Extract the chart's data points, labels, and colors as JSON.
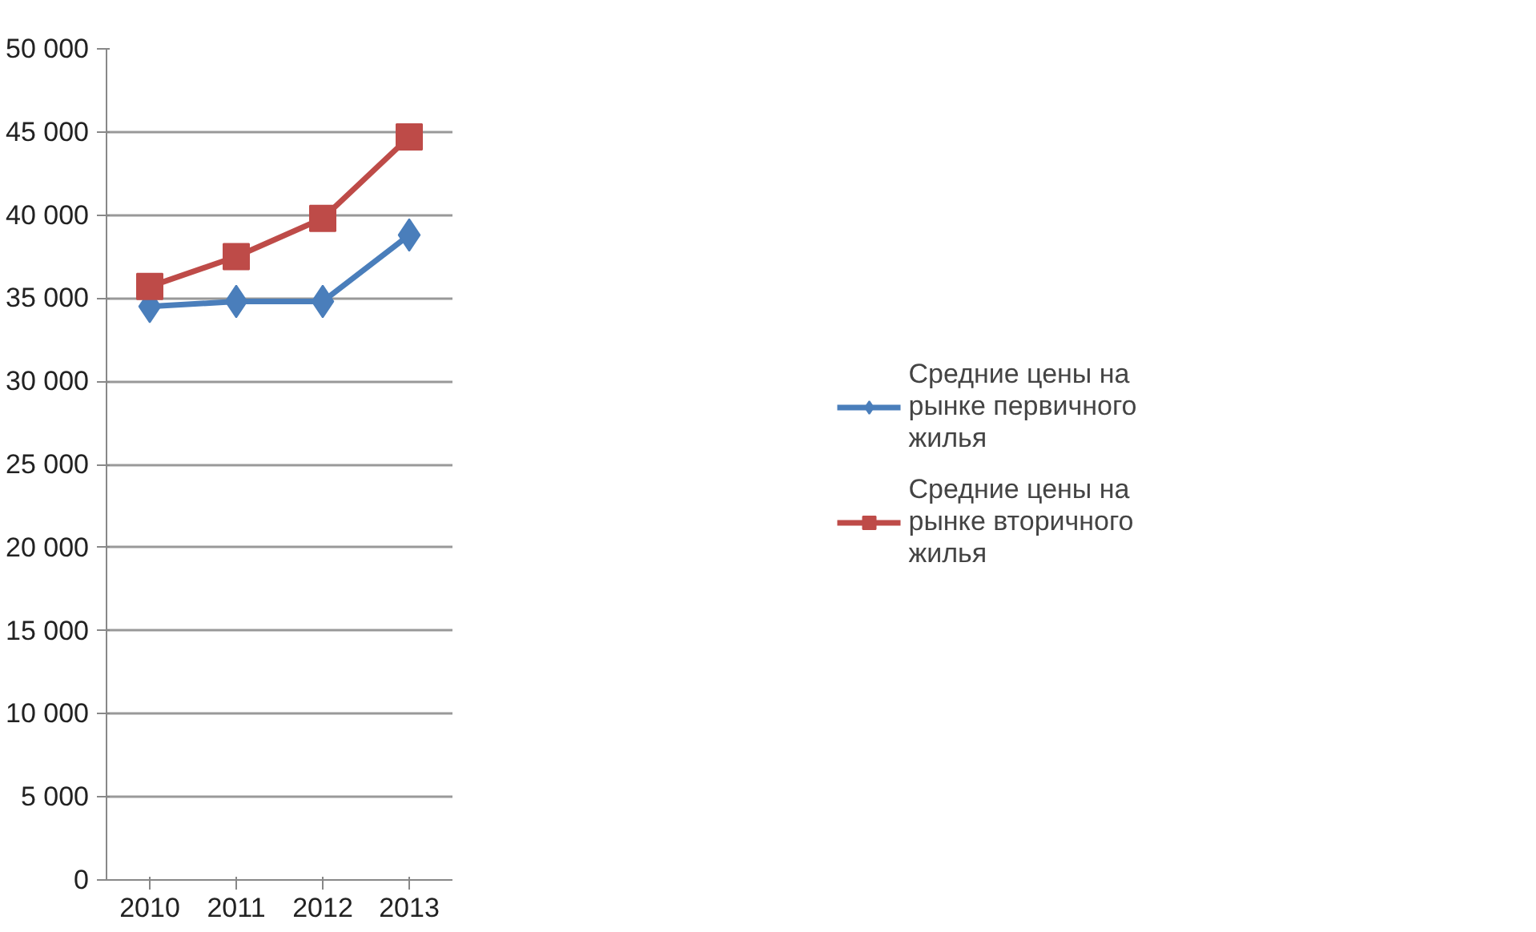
{
  "chart_data": {
    "type": "line",
    "categories": [
      "2010",
      "2011",
      "2012",
      "2013"
    ],
    "series": [
      {
        "name": "Средние цены на рынке первичного жилья",
        "color": "#4a7ebb",
        "values": [
          34500,
          34800,
          34800,
          38800
        ],
        "marker": "diamond"
      },
      {
        "name": "Средние цены на рынке вторичного жилья",
        "color": "#be4b48",
        "values": [
          35700,
          37500,
          39800,
          44700
        ],
        "marker": "square"
      }
    ],
    "ylim": [
      0,
      50000
    ],
    "yticks": [
      {
        "value": 0,
        "label": "0"
      },
      {
        "value": 5000,
        "label": "5 000"
      },
      {
        "value": 10000,
        "label": "10 000"
      },
      {
        "value": 15000,
        "label": "15 000"
      },
      {
        "value": 20000,
        "label": "20 000"
      },
      {
        "value": 25000,
        "label": "25 000"
      },
      {
        "value": 30000,
        "label": "30 000"
      },
      {
        "value": 35000,
        "label": "35 000"
      },
      {
        "value": 40000,
        "label": "40 000"
      },
      {
        "value": 45000,
        "label": "45 000"
      },
      {
        "value": 50000,
        "label": "50 000"
      }
    ],
    "grid": "y",
    "legend": "right",
    "line_style": "solid"
  }
}
